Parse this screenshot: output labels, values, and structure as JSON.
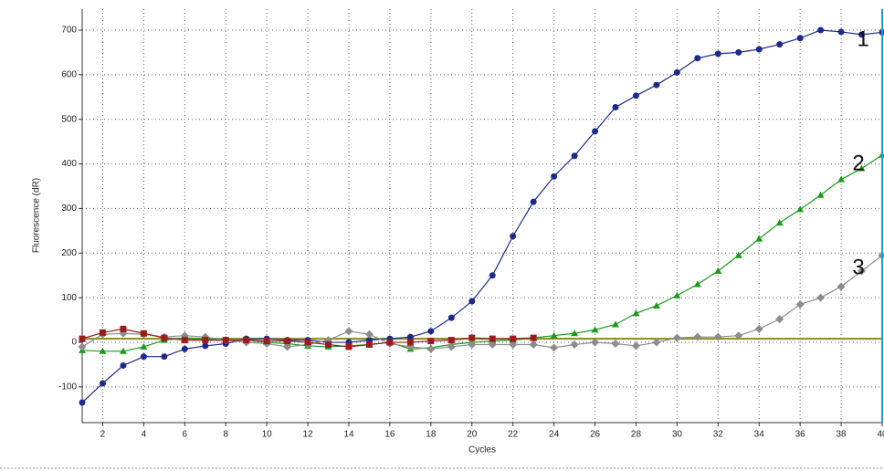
{
  "chart_data": {
    "type": "line",
    "x_label": "Cycles",
    "y_label": "Fluorescence (dR)",
    "x": [
      1,
      2,
      3,
      4,
      5,
      6,
      7,
      8,
      9,
      10,
      11,
      12,
      13,
      14,
      15,
      16,
      17,
      18,
      19,
      20,
      21,
      22,
      23,
      24,
      25,
      26,
      27,
      28,
      29,
      30,
      31,
      32,
      33,
      34,
      35,
      36,
      37,
      38,
      39,
      40
    ],
    "xlim": [
      1,
      40
    ],
    "xticks": [
      2,
      4,
      6,
      8,
      10,
      12,
      14,
      16,
      18,
      20,
      22,
      24,
      26,
      28,
      30,
      32,
      34,
      36,
      38,
      40
    ],
    "ylim": [
      -180,
      747
    ],
    "yticks": [
      -100,
      0,
      100,
      200,
      300,
      400,
      500,
      600,
      700
    ],
    "grid": true,
    "threshold": 8,
    "threshold_color": "#8a8a1a",
    "series": [
      {
        "color": "#1c2a8c",
        "marker": "circle",
        "values": [
          -135,
          -92,
          -52,
          -32,
          -32,
          -15,
          -8,
          -3,
          8,
          8,
          5,
          5,
          0,
          0,
          5,
          8,
          12,
          25,
          55,
          92,
          150,
          238,
          315,
          372,
          418,
          473,
          527,
          553,
          577,
          605,
          637,
          647,
          650,
          657,
          668,
          682,
          700,
          696,
          690,
          695
        ]
      },
      {
        "color": "#1a9a1a",
        "marker": "triangle",
        "values": [
          -18,
          -20,
          -20,
          -10,
          5,
          10,
          8,
          5,
          5,
          0,
          -3,
          -8,
          -10,
          -8,
          -5,
          0,
          -15,
          -12,
          -5,
          0,
          3,
          5,
          10,
          15,
          20,
          28,
          40,
          65,
          82,
          105,
          130,
          160,
          195,
          232,
          268,
          298,
          330,
          365,
          390,
          420
        ]
      },
      {
        "color": "#8c8c8c",
        "marker": "diamond",
        "values": [
          -10,
          18,
          20,
          18,
          12,
          15,
          12,
          5,
          0,
          -3,
          -10,
          -5,
          5,
          25,
          18,
          -3,
          -10,
          -15,
          -10,
          -5,
          -5,
          -5,
          -5,
          -12,
          -5,
          0,
          -3,
          -8,
          0,
          10,
          12,
          12,
          15,
          30,
          52,
          85,
          100,
          125,
          160,
          195
        ]
      },
      {
        "color": "#9b1c1c",
        "marker": "square",
        "values": [
          8,
          22,
          30,
          20,
          10,
          5,
          5,
          5,
          5,
          3,
          3,
          0,
          -5,
          -10,
          -5,
          0,
          0,
          3,
          5,
          10,
          8,
          8,
          10,
          null,
          null,
          null,
          null,
          null,
          null,
          null,
          null,
          null,
          null,
          null,
          null,
          null,
          null,
          null,
          null,
          null
        ]
      }
    ],
    "annotations": [
      "1",
      "2",
      "3"
    ]
  }
}
